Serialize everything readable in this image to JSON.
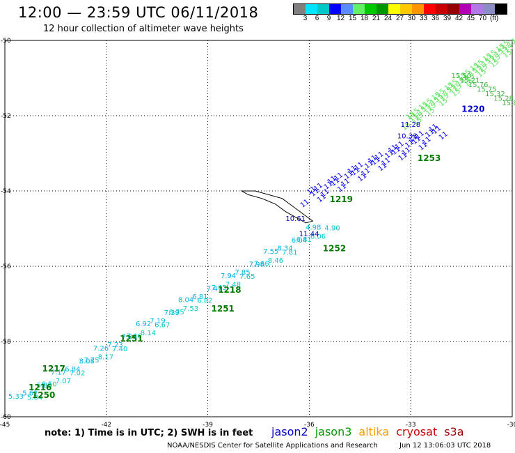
{
  "header": {
    "title": "12:00 — 23:59 UTC 06/11/2018",
    "subtitle": "12 hour collection of altimeter wave heights"
  },
  "legend": {
    "colors": [
      "#7f7f7f",
      "#00e5ff",
      "#00c8c8",
      "#0000ff",
      "#5a8cff",
      "#64f064",
      "#00c800",
      "#009600",
      "#ffff00",
      "#ffc800",
      "#ff9600",
      "#ff0000",
      "#c80000",
      "#960000",
      "#b400b4",
      "#b478e6",
      "#8c8cc8",
      "#000000"
    ],
    "labels": [
      "3",
      "6",
      "9",
      "12",
      "15",
      "18",
      "21",
      "24",
      "27",
      "30",
      "33",
      "36",
      "39",
      "42",
      "45",
      "70"
    ],
    "unit": "(ft)"
  },
  "axes": {
    "x_ticks": [
      "-45",
      "-42",
      "-39",
      "-36",
      "-33",
      "-30"
    ],
    "y_ticks": [
      "-50",
      "-52",
      "-54",
      "-56",
      "-58",
      "-60"
    ]
  },
  "note": "note: 1) Time is in UTC; 2) SWH is in feet",
  "satellites": [
    {
      "name": "jason2",
      "color": "#0000cc"
    },
    {
      "name": "jason3",
      "color": "#009900"
    },
    {
      "name": "altika",
      "color": "#ff9900"
    },
    {
      "name": "cryosat",
      "color": "#cc0000"
    },
    {
      "name": "s3a",
      "color": "#990000"
    }
  ],
  "footer": {
    "credit": "NOAA/NESDIS Center for Satellite Applications and Research",
    "timestamp": "Jun 12 13:06:03 UTC 2018"
  },
  "tracks": {
    "cyan_track_heights": [
      "5.33",
      "5.84",
      "5.62",
      "6.50",
      "6.88",
      "7.07",
      "7.17",
      "7.02",
      "6.84",
      "7.75",
      "8.08",
      "8.17",
      "7.26",
      "7.40",
      "7.23",
      "7.46",
      "7.35",
      "8.14",
      "6.92",
      "6.67",
      "7.19",
      "6.75",
      "7.39",
      "7.53",
      "8.04",
      "6.82",
      "6.81",
      "7.45",
      "7.47",
      "7.48",
      "7.94",
      "7.65",
      "7.85",
      "7.66",
      "7.98",
      "8.46",
      "7.55",
      "7.81",
      "8.34",
      "6.81",
      "6.04",
      "6.06",
      "4.98",
      "4.90"
    ],
    "jason3_times": [
      {
        "label": "1250",
        "lon": -44.2,
        "lat": -59.5
      },
      {
        "label": "1216",
        "lon": -44.3,
        "lat": -59.3
      },
      {
        "label": "1217",
        "lon": -43.9,
        "lat": -58.8
      },
      {
        "label": "1251",
        "lon": -41.6,
        "lat": -58.0
      },
      {
        "label": "1251",
        "lon": -38.9,
        "lat": -57.2
      },
      {
        "label": "1218",
        "lon": -38.7,
        "lat": -56.7
      },
      {
        "label": "1252",
        "lon": -35.6,
        "lat": -55.6
      },
      {
        "label": "1219",
        "lon": -35.4,
        "lat": -54.3
      },
      {
        "label": "1253",
        "lon": -32.8,
        "lat": -53.2
      },
      {
        "label": "1220",
        "lon": -31.5,
        "lat": -51.9
      }
    ],
    "jason2_labels": [
      {
        "label": "10.61",
        "lon": -36.7,
        "lat": -54.8
      },
      {
        "label": "11.44",
        "lon": -36.3,
        "lat": -55.2
      },
      {
        "label": "11.28",
        "lon": -33.3,
        "lat": -52.3
      },
      {
        "label": "10.33",
        "lon": -33.4,
        "lat": -52.6
      }
    ],
    "green_labels": [
      "15.50",
      "15.21",
      "15.76",
      "15.75",
      "15.32",
      "15.28",
      "15.80"
    ]
  }
}
